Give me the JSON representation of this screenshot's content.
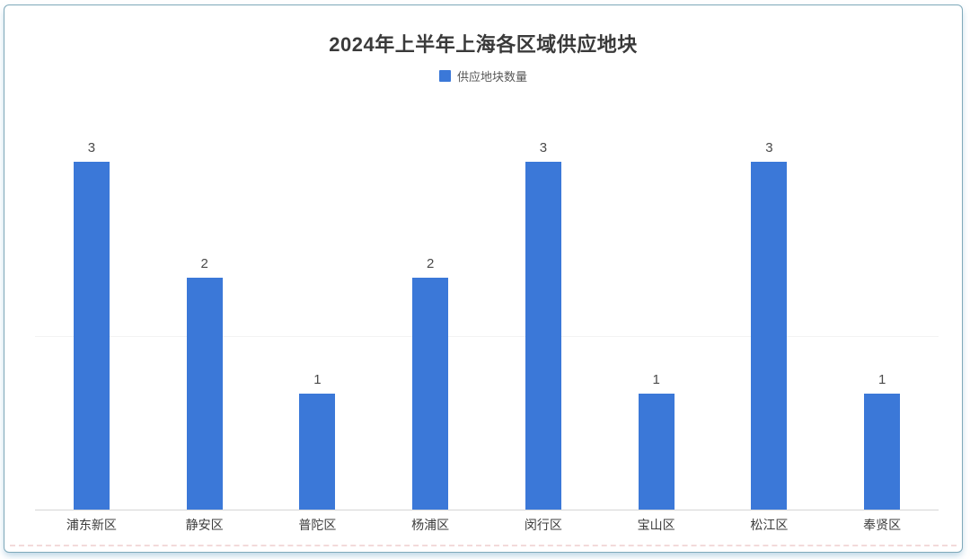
{
  "chart_data": {
    "type": "bar",
    "title": "2024年上半年上海各区域供应地块",
    "legend": [
      "供应地块数量"
    ],
    "legend_position": "top-center",
    "categories": [
      "浦东新区",
      "静安区",
      "普陀区",
      "杨浦区",
      "闵行区",
      "宝山区",
      "松江区",
      "奉贤区"
    ],
    "values": [
      3,
      2,
      1,
      2,
      3,
      1,
      3,
      1
    ],
    "data_labels": true,
    "xlabel": "",
    "ylabel": "",
    "ylim": [
      0,
      3
    ],
    "gridlines_y": [
      1.5
    ],
    "y_axis_labels_visible": false,
    "grid": "minimal"
  },
  "colors": {
    "bar": "#3b78d8",
    "card_border": "#7fa9ba",
    "axis_line": "#d6d6d6",
    "gridline": "#f3f3f3",
    "title_text": "#3a3a3a",
    "label_text": "#3d3d3d"
  }
}
